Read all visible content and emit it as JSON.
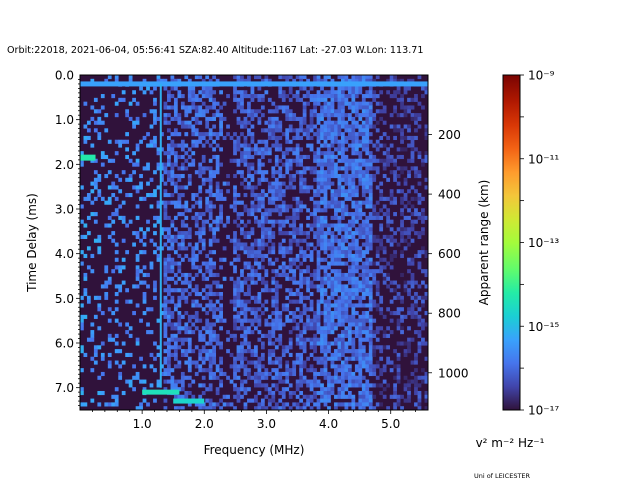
{
  "figure": {
    "header": "Orbit:22018, 2021-06-04, 05:56:41 SZA:82.40 Altitude:1167 Lat: -27.03 W.Lon: 113.71",
    "footer": "Uni of LEICESTER"
  },
  "chart_data": {
    "type": "heatmap",
    "title": "Orbit:22018, 2021-06-04, 05:56:41 SZA:82.40 Altitude:1167 Lat: -27.03 W.Lon: 113.71",
    "xlabel": "Frequency (MHz)",
    "ylabel": "Time Delay (ms)",
    "ylabel_right": "Apparent range (km)",
    "xlim": [
      0.0,
      5.6
    ],
    "ylim": [
      7.5,
      0.0
    ],
    "x_ticks": [
      "1.0",
      "2.0",
      "3.0",
      "4.0",
      "5.0"
    ],
    "y_ticks": [
      "0.0",
      "1.0",
      "2.0",
      "3.0",
      "4.0",
      "5.0",
      "6.0",
      "7.0"
    ],
    "right_ticks": [
      "200",
      "400",
      "600",
      "800",
      "1000"
    ],
    "right_tick_values_km": [
      200,
      400,
      600,
      800,
      1000
    ],
    "colorbar": {
      "label": "v² m⁻² Hz⁻¹",
      "scale": "log",
      "range": [
        1e-17,
        1e-09
      ],
      "tick_labels": [
        "10⁻⁹",
        "10⁻¹¹",
        "10⁻¹³",
        "10⁻¹⁵",
        "10⁻¹⁷"
      ],
      "tick_exponents": [
        -9,
        -11,
        -13,
        -15,
        -17
      ],
      "colormap": "turbo"
    },
    "background_color": "#30123b",
    "features": [
      {
        "kind": "horizontal-band",
        "delay_ms": 0.2,
        "x_range": [
          0.0,
          5.6
        ],
        "level": -15.3
      },
      {
        "kind": "vertical-line",
        "freq_mhz": 1.3,
        "y_range": [
          0.2,
          7.0
        ],
        "level": -15.1
      },
      {
        "kind": "spot",
        "freq_mhz": 0.1,
        "delay_ms": 1.85,
        "level": -14.2
      },
      {
        "kind": "horizontal-band",
        "delay_ms": 7.1,
        "x_range": [
          1.0,
          1.6
        ],
        "level": -14.4
      },
      {
        "kind": "horizontal-band",
        "delay_ms": 7.3,
        "x_range": [
          1.5,
          2.0
        ],
        "level": -14.6
      }
    ]
  }
}
